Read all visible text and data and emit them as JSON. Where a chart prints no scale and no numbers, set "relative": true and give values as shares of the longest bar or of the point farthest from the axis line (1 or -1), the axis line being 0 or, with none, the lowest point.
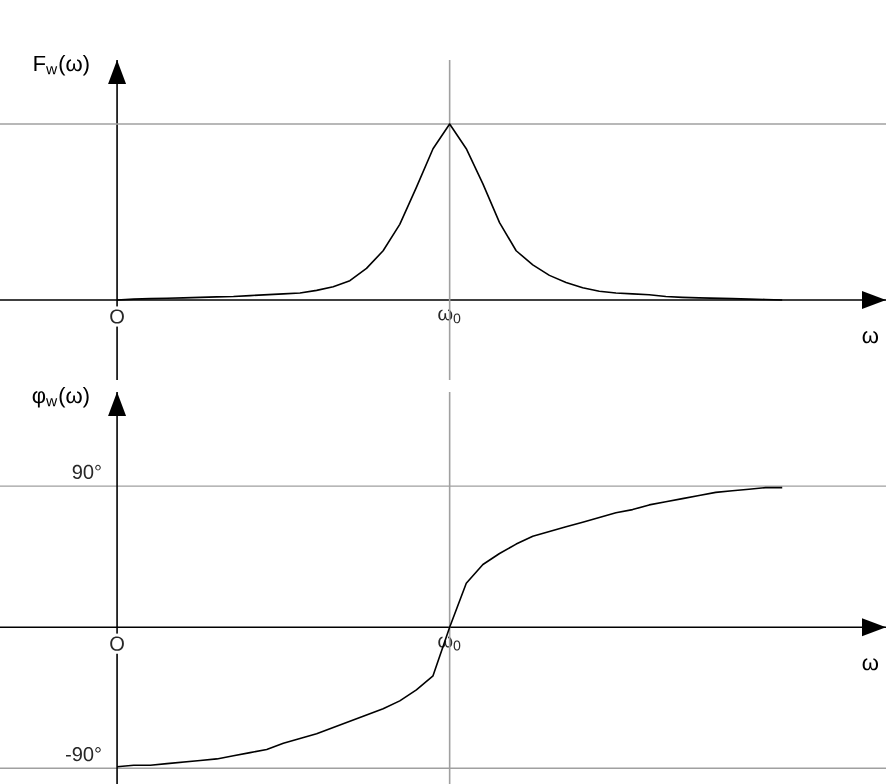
{
  "chart_data": [
    {
      "type": "line",
      "ylabel": "F$_{w}$(ω)",
      "xlabel": "ω",
      "relative": true,
      "categories": [
        "O",
        null,
        null,
        null,
        null,
        null,
        null,
        null,
        null,
        null,
        null,
        null,
        null,
        null,
        null,
        null,
        null,
        null,
        null,
        null,
        "ω$_{0}$",
        null,
        null,
        null,
        null,
        null,
        null,
        null,
        null,
        null,
        null,
        null,
        null,
        null,
        null,
        null,
        null,
        null,
        null,
        null,
        null
      ],
      "series": [
        {
          "color": "#000000",
          "values": [
            0,
            0.005,
            0.008,
            0.01,
            0.012,
            0.015,
            0.018,
            0.02,
            0.025,
            0.03,
            0.035,
            0.04,
            0.055,
            0.075,
            0.11,
            0.18,
            0.28,
            0.43,
            0.64,
            0.86,
            1,
            0.86,
            0.66,
            0.44,
            0.28,
            0.2,
            0.14,
            0.1,
            0.07,
            0.05,
            0.04,
            0.035,
            0.03,
            0.02,
            0.015,
            0.012,
            0.01,
            0.008,
            0.005,
            0.003,
            0
          ]
        }
      ],
      "ref_lines": [
        {
          "axis": "x",
          "value": "ω$_{0}$",
          "color": "#a0a0a0"
        },
        {
          "axis": "y",
          "value": 1,
          "color": "#a0a0a0"
        }
      ]
    },
    {
      "type": "line",
      "ylabel": "φ$_{w}$(ω)",
      "xlabel": "ω",
      "ylim": [
        -100,
        150
      ],
      "yticks": [
        {
          "value": -90,
          "label": "-90°"
        },
        {
          "value": 90,
          "label": "90°"
        }
      ],
      "grid": "y",
      "categories": [
        "O",
        null,
        null,
        null,
        null,
        null,
        null,
        null,
        null,
        null,
        null,
        null,
        null,
        null,
        null,
        null,
        null,
        null,
        null,
        null,
        "ω$_{0}$",
        null,
        null,
        null,
        null,
        null,
        null,
        null,
        null,
        null,
        null,
        null,
        null,
        null,
        null,
        null,
        null,
        null,
        null,
        null,
        null
      ],
      "series": [
        {
          "color": "#000000",
          "values": [
            -89,
            -88,
            -88,
            -87,
            -86,
            -85,
            -84,
            -82,
            -80,
            -78,
            -74,
            -71,
            -68,
            -64,
            -60,
            -56,
            -52,
            -47,
            -40,
            -31,
            0,
            28,
            40,
            47,
            53,
            58,
            61,
            64,
            67,
            70,
            73,
            75,
            78,
            80,
            82,
            84,
            86,
            87,
            88,
            89,
            89
          ]
        }
      ],
      "ref_lines": [
        {
          "axis": "x",
          "value": "ω$_{0}$",
          "color": "#a0a0a0"
        }
      ]
    }
  ]
}
